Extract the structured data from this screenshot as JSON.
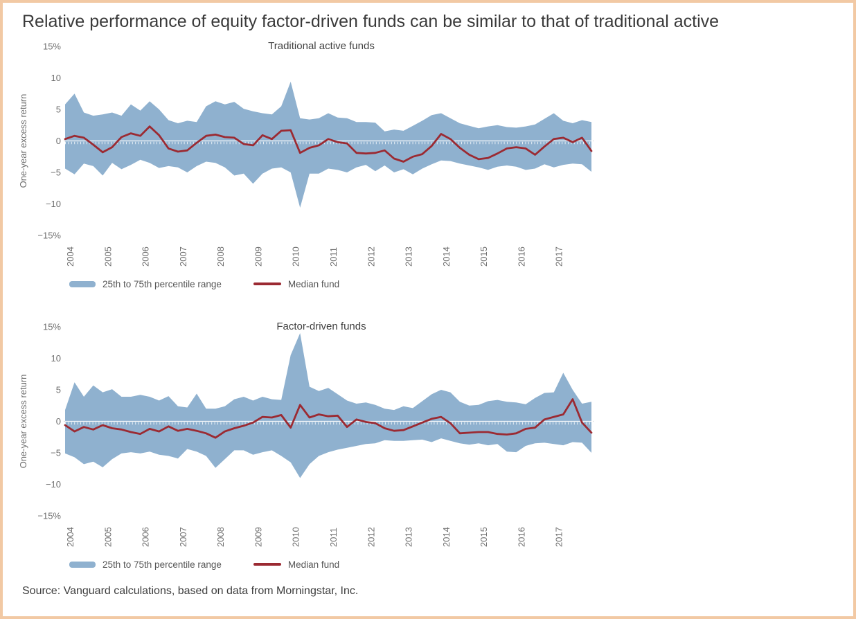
{
  "figure": {
    "title": "Relative performance of equity factor-driven funds can be similar to that of traditional active",
    "source": "Source: Vanguard calculations, based on data from Morningstar, Inc."
  },
  "colors": {
    "band": "#8fb1cf",
    "median": "#9b2a32",
    "frame_border": "#f2c9a4",
    "title_text": "#3a3a3a",
    "chart_title_text": "#404040",
    "axis_text": "#6f6f6f",
    "legend_text": "#555555",
    "zero_line_outer": "#cfcfcf",
    "zero_line_inner": "#ffffff"
  },
  "legend": {
    "band_label": "25th to 75th percentile range",
    "median_label": "Median fund"
  },
  "axes": {
    "y_label": "One-year excess return",
    "y_ticks": [
      {
        "v": 15,
        "label": "15%"
      },
      {
        "v": 10,
        "label": "10"
      },
      {
        "v": 5,
        "label": "5"
      },
      {
        "v": 0,
        "label": "0"
      },
      {
        "v": -5,
        "label": "−5"
      },
      {
        "v": -10,
        "label": "−10"
      },
      {
        "v": -15,
        "label": "−15%"
      }
    ],
    "x_ticks": [
      "2004",
      "2005",
      "2006",
      "2007",
      "2008",
      "2009",
      "2010",
      "2011",
      "2012",
      "2013",
      "2014",
      "2015",
      "2016",
      "2017"
    ],
    "ylim": [
      -15,
      15
    ],
    "xlim": [
      2004,
      2018
    ]
  },
  "chart_data": [
    {
      "type": "area",
      "title": "Traditional active funds",
      "x_start": 2004,
      "x_step": 0.25,
      "ylabel": "One-year excess return",
      "ylim": [
        -15,
        15
      ],
      "series": [
        {
          "name": "25th to 75th percentile range",
          "role": "band",
          "p75": [
            5.8,
            7.5,
            4.5,
            4.0,
            4.2,
            4.5,
            4.0,
            5.8,
            4.8,
            6.3,
            5.0,
            3.3,
            2.8,
            3.2,
            3.0,
            5.5,
            6.3,
            5.8,
            6.2,
            5.1,
            4.7,
            4.4,
            4.2,
            5.5,
            9.4,
            3.6,
            3.4,
            3.6,
            4.4,
            3.7,
            3.6,
            3.0,
            3.0,
            2.9,
            1.5,
            1.8,
            1.6,
            2.4,
            3.2,
            4.1,
            4.4,
            3.6,
            2.8,
            2.4,
            2.0,
            2.3,
            2.5,
            2.2,
            2.1,
            2.3,
            2.6,
            3.5,
            4.4,
            3.2,
            2.8,
            3.3,
            3.0
          ],
          "p25": [
            -4.4,
            -5.3,
            -3.6,
            -4.0,
            -5.5,
            -3.5,
            -4.5,
            -3.8,
            -3.0,
            -3.5,
            -4.3,
            -4.0,
            -4.2,
            -5.0,
            -4.0,
            -3.3,
            -3.5,
            -4.2,
            -5.5,
            -5.2,
            -6.8,
            -5.2,
            -4.4,
            -4.2,
            -5.0,
            -10.6,
            -5.2,
            -5.2,
            -4.4,
            -4.6,
            -5.0,
            -4.2,
            -3.8,
            -4.8,
            -3.9,
            -5.0,
            -4.5,
            -5.3,
            -4.4,
            -3.7,
            -3.1,
            -3.2,
            -3.6,
            -3.9,
            -4.2,
            -4.6,
            -4.1,
            -3.9,
            -4.1,
            -4.6,
            -4.4,
            -3.7,
            -4.2,
            -3.8,
            -3.6,
            -3.7,
            -4.9
          ]
        },
        {
          "name": "Median fund",
          "role": "line",
          "values": [
            0.3,
            0.8,
            0.5,
            -0.6,
            -1.8,
            -1.0,
            0.6,
            1.2,
            0.8,
            2.3,
            0.9,
            -1.2,
            -1.7,
            -1.5,
            -0.3,
            0.8,
            1.0,
            0.6,
            0.5,
            -0.5,
            -0.7,
            0.9,
            0.3,
            1.6,
            1.7,
            -1.9,
            -1.1,
            -0.7,
            0.3,
            -0.2,
            -0.4,
            -1.9,
            -2.0,
            -1.9,
            -1.5,
            -2.8,
            -3.3,
            -2.5,
            -2.1,
            -0.8,
            1.1,
            0.3,
            -1.1,
            -2.2,
            -2.9,
            -2.7,
            -2.0,
            -1.2,
            -1.0,
            -1.2,
            -2.2,
            -0.9,
            0.3,
            0.5,
            -0.2,
            0.5,
            -1.6
          ]
        }
      ]
    },
    {
      "type": "area",
      "title": "Factor-driven funds",
      "x_start": 2004,
      "x_step": 0.25,
      "ylabel": "One-year excess return",
      "ylim": [
        -15,
        15
      ],
      "series": [
        {
          "name": "25th to 75th percentile range",
          "role": "band",
          "p75": [
            1.8,
            6.2,
            3.9,
            5.7,
            4.6,
            5.1,
            3.9,
            3.9,
            4.2,
            3.9,
            3.3,
            4.0,
            2.4,
            2.2,
            4.4,
            2.0,
            2.0,
            2.4,
            3.5,
            3.9,
            3.3,
            3.9,
            3.5,
            3.4,
            10.5,
            14.0,
            5.5,
            4.8,
            5.3,
            4.3,
            3.3,
            2.8,
            3.0,
            2.6,
            2.0,
            1.8,
            2.4,
            2.1,
            3.2,
            4.3,
            5.0,
            4.6,
            3.1,
            2.5,
            2.6,
            3.2,
            3.4,
            3.1,
            3.0,
            2.7,
            3.7,
            4.5,
            4.6,
            7.7,
            5.0,
            2.8,
            3.1
          ],
          "p25": [
            -5.1,
            -5.7,
            -6.8,
            -6.4,
            -7.3,
            -6.0,
            -5.1,
            -4.9,
            -5.1,
            -4.8,
            -5.3,
            -5.5,
            -5.9,
            -4.4,
            -4.8,
            -5.5,
            -7.4,
            -6.0,
            -4.6,
            -4.6,
            -5.3,
            -4.9,
            -4.6,
            -5.5,
            -6.5,
            -9.0,
            -6.8,
            -5.5,
            -4.9,
            -4.5,
            -4.2,
            -3.9,
            -3.6,
            -3.5,
            -3.0,
            -3.1,
            -3.1,
            -3.0,
            -2.9,
            -3.3,
            -2.7,
            -3.1,
            -3.5,
            -3.7,
            -3.5,
            -3.8,
            -3.6,
            -4.8,
            -4.9,
            -3.9,
            -3.5,
            -3.4,
            -3.6,
            -3.8,
            -3.3,
            -3.4,
            -5.0
          ]
        },
        {
          "name": "Median fund",
          "role": "line",
          "values": [
            -0.6,
            -1.6,
            -0.9,
            -1.3,
            -0.6,
            -1.1,
            -1.3,
            -1.7,
            -2.0,
            -1.2,
            -1.6,
            -0.8,
            -1.5,
            -1.2,
            -1.5,
            -1.9,
            -2.6,
            -1.6,
            -1.1,
            -0.7,
            -0.2,
            0.7,
            0.6,
            1.0,
            -1.0,
            2.6,
            0.6,
            1.1,
            0.8,
            0.9,
            -0.9,
            0.3,
            -0.1,
            -0.3,
            -1.1,
            -1.5,
            -1.4,
            -0.8,
            -0.2,
            0.4,
            0.7,
            -0.3,
            -1.9,
            -1.8,
            -1.7,
            -1.7,
            -2.0,
            -2.1,
            -1.9,
            -1.2,
            -1.0,
            0.3,
            0.7,
            1.1,
            3.5,
            -0.2,
            -1.8
          ]
        }
      ]
    }
  ]
}
